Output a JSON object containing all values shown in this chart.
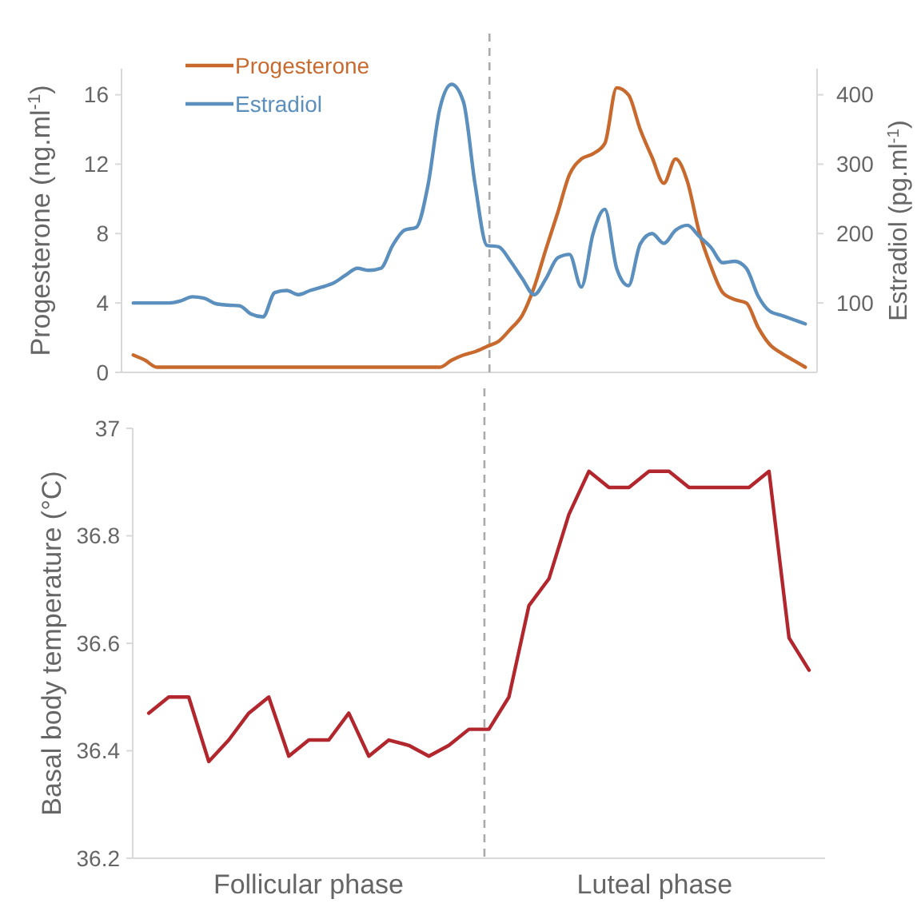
{
  "chart_data": [
    {
      "type": "line",
      "ylabel": "Progesterone (ng.ml$^{-1}$)",
      "y2label": "Estradiol (pg.ml$^{-1}$)",
      "categories": [
        null,
        null,
        null,
        null,
        null,
        null,
        null,
        null,
        null,
        null,
        null,
        null,
        null,
        null,
        null,
        null,
        null,
        null,
        null,
        null,
        null,
        null,
        null,
        null,
        null,
        null,
        null,
        null,
        null,
        null,
        null,
        null,
        null,
        null,
        null,
        null,
        null,
        null,
        null,
        null,
        null,
        null,
        null,
        null,
        null,
        null,
        null,
        null,
        null,
        null,
        null,
        null,
        null,
        null,
        null,
        null,
        null,
        null
      ],
      "ylim": [
        0,
        17.5
      ],
      "yticks": [
        0,
        4,
        8,
        12,
        16
      ],
      "y2lim": [
        0,
        437.5
      ],
      "y2ticks": [
        100,
        200,
        300,
        400
      ],
      "legend": "top left",
      "grid": false,
      "series": [
        {
          "name": "Progesterone",
          "color": "#c8692e",
          "values": [
            1.0,
            0.7,
            0.3,
            0.3,
            0.3,
            0.3,
            0.3,
            0.3,
            0.3,
            0.3,
            0.3,
            0.3,
            0.3,
            0.3,
            0.3,
            0.3,
            0.3,
            0.3,
            0.3,
            0.3,
            0.3,
            0.3,
            0.3,
            0.3,
            0.3,
            0.3,
            0.3,
            0.7,
            1.0,
            1.2,
            1.5,
            1.8,
            2.5,
            3.3,
            4.9,
            7.1,
            9.2,
            11.4,
            12.3,
            12.6,
            13.2,
            16.4,
            16.0,
            14.0,
            12.4,
            10.9,
            12.3,
            11.0,
            8.1,
            6.1,
            4.6,
            4.2,
            4.0,
            2.6,
            1.6,
            1.1,
            0.7,
            0.3
          ]
        },
        {
          "name": "Estradiol",
          "color": "#5b8fbd",
          "axis": "y2",
          "values": [
            100,
            100,
            100,
            100,
            103,
            109,
            107,
            99,
            97,
            96,
            84,
            80,
            115,
            118,
            112,
            118,
            123,
            129,
            140,
            150,
            147,
            150,
            183,
            205,
            209,
            270,
            380,
            415,
            390,
            270,
            183,
            181,
            160,
            135,
            112,
            135,
            165,
            170,
            123,
            200,
            235,
            150,
            125,
            185,
            200,
            186,
            205,
            212,
            196,
            180,
            158,
            160,
            150,
            110,
            88,
            82,
            76,
            70
          ]
        }
      ]
    },
    {
      "type": "line",
      "ylabel": "Basal body temperature (°C)",
      "categories": [
        null,
        null,
        null,
        null,
        null,
        null,
        null,
        null,
        null,
        null,
        null,
        null,
        null,
        null,
        null,
        null,
        null,
        null,
        null,
        null,
        null,
        null,
        null,
        null,
        null,
        null,
        null,
        null,
        null,
        null,
        null,
        null,
        null,
        null
      ],
      "ylim": [
        36.2,
        37
      ],
      "yticks": [
        36.2,
        36.4,
        36.6,
        36.8,
        37
      ],
      "grid": false,
      "annotations": [
        "Follicular phase",
        "Luteal phase"
      ],
      "series": [
        {
          "color": "#b2272e",
          "values": [
            36.47,
            36.5,
            36.5,
            36.38,
            36.42,
            36.47,
            36.5,
            36.39,
            36.42,
            36.42,
            36.47,
            36.39,
            36.42,
            36.41,
            36.39,
            36.41,
            36.44,
            36.44,
            36.5,
            36.67,
            36.72,
            36.84,
            36.92,
            36.89,
            36.89,
            36.92,
            36.92,
            36.89,
            36.89,
            36.89,
            36.89,
            36.92,
            36.61,
            36.55
          ]
        }
      ]
    }
  ]
}
